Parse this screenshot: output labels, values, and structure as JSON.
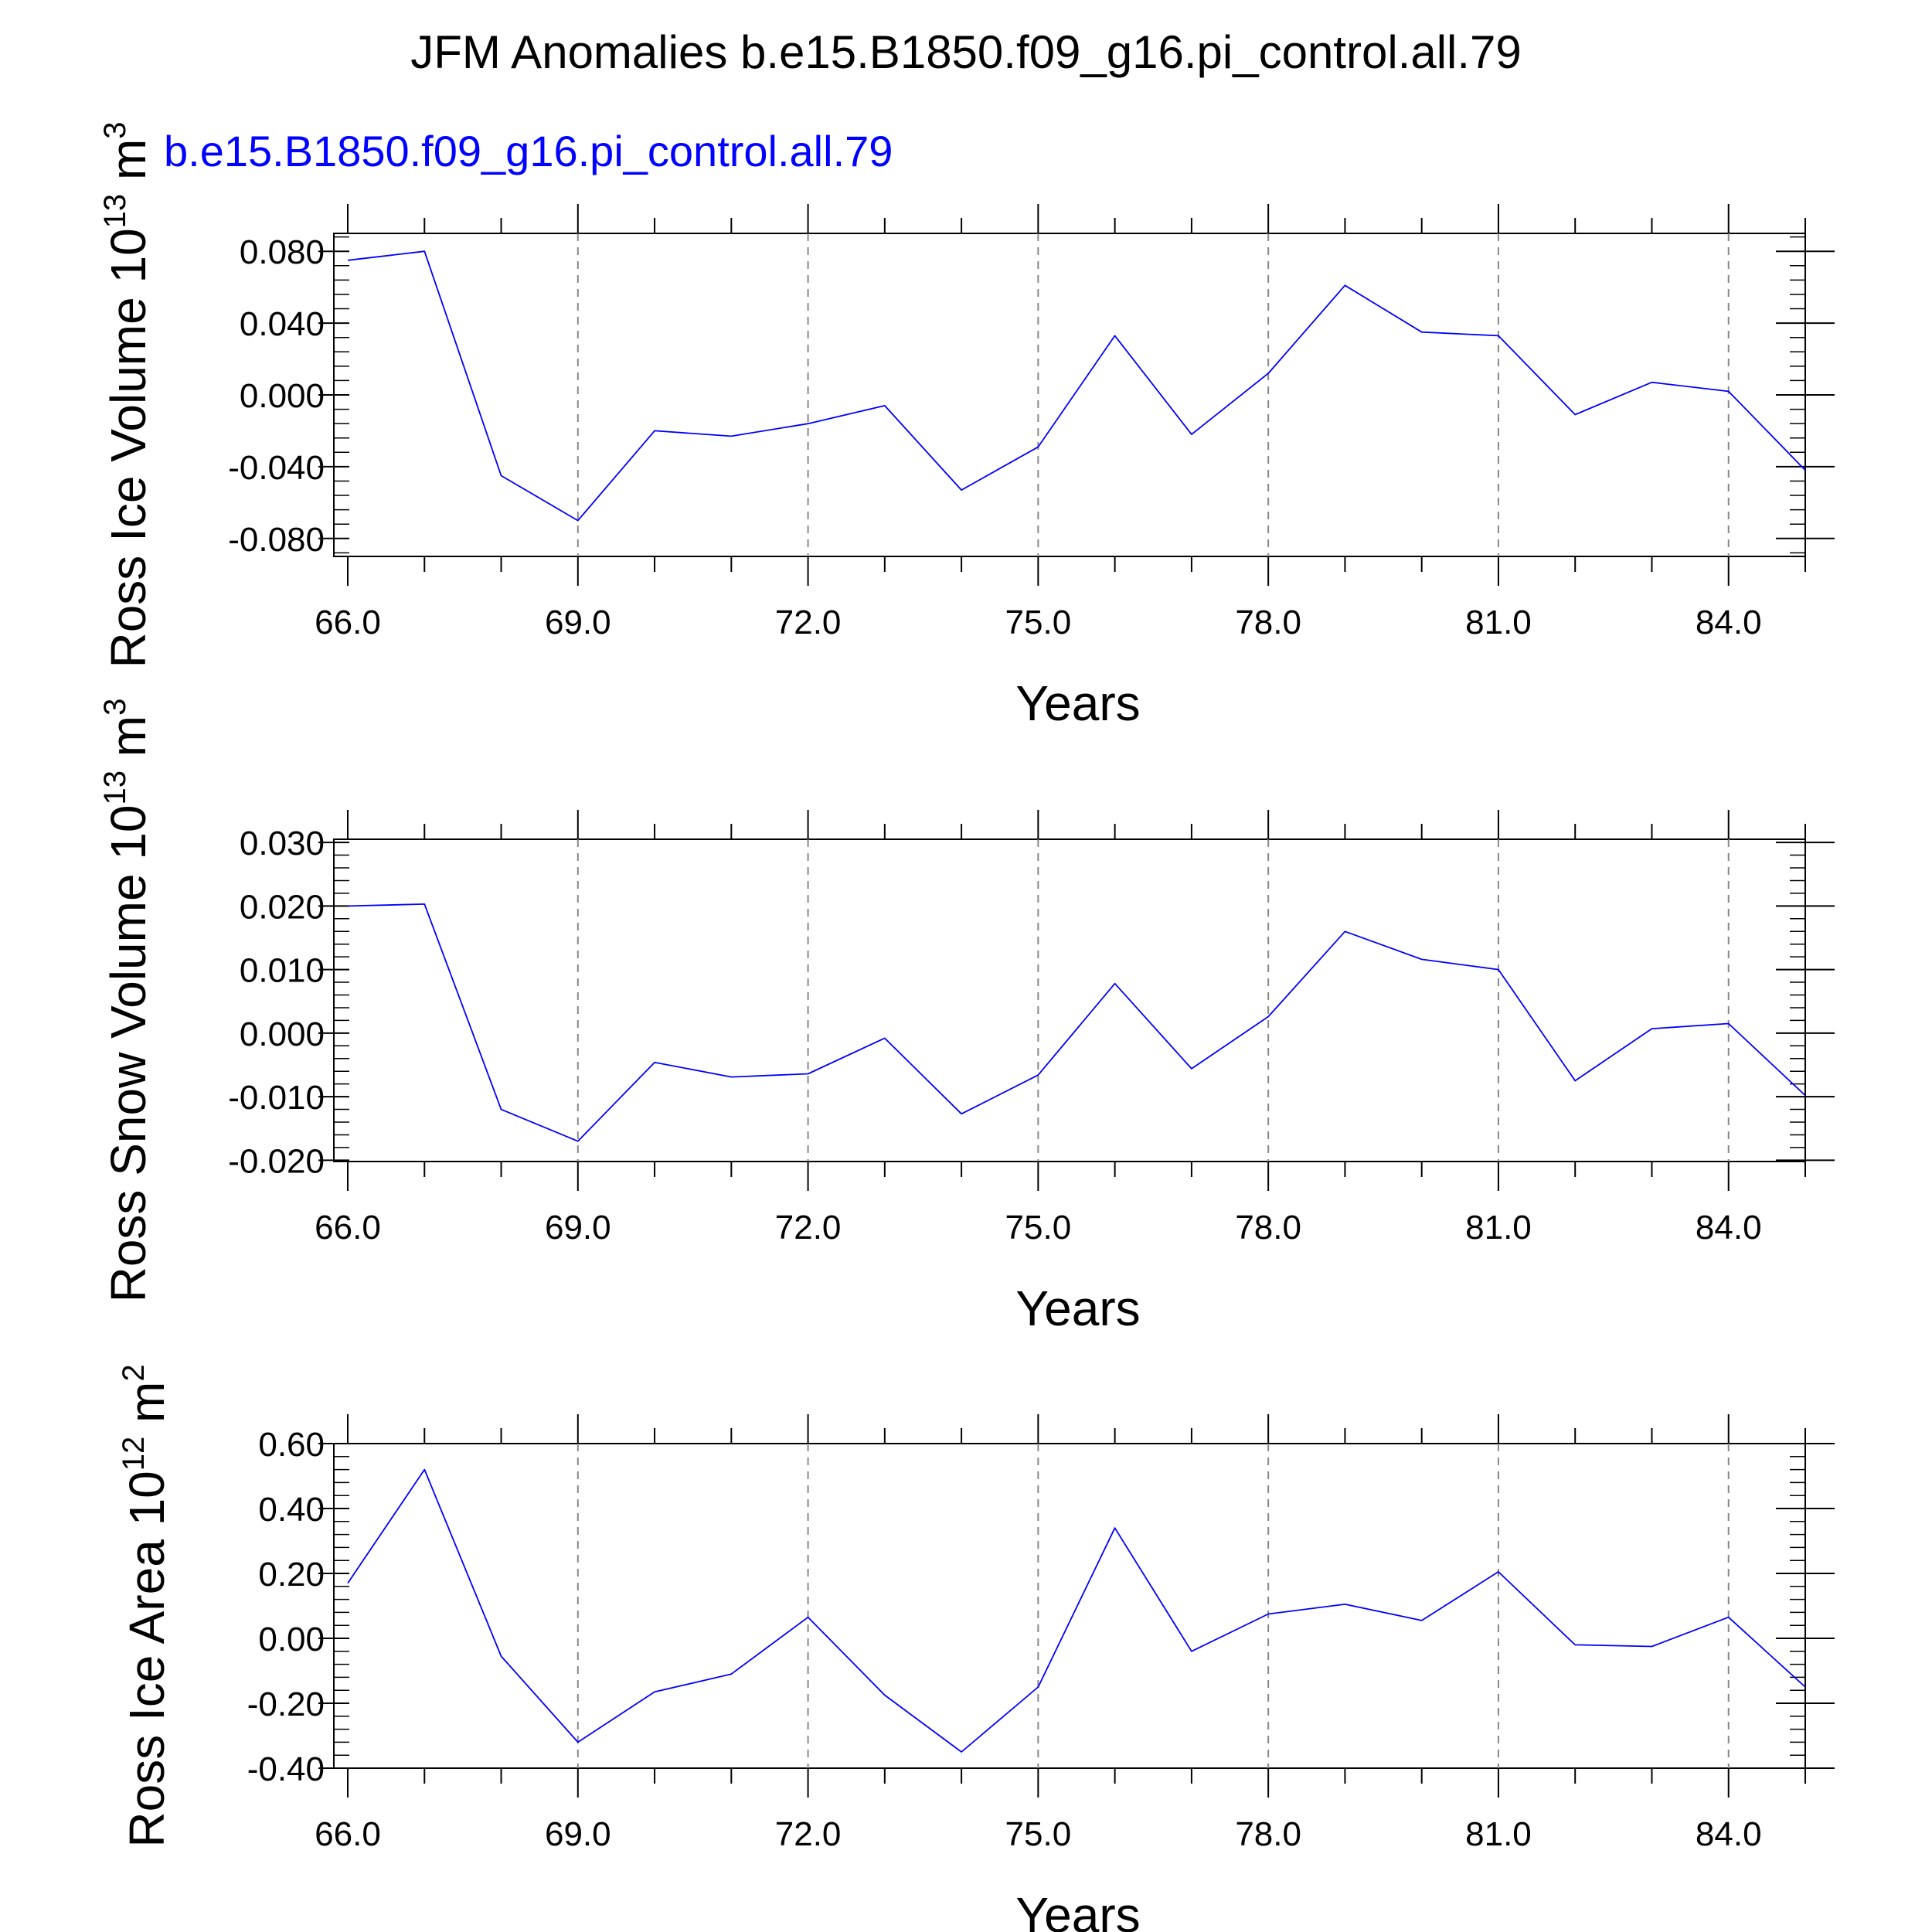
{
  "figure": {
    "title": "JFM Anomalies b.e15.B1850.f09_g16.pi_control.all.79",
    "legend_label": "b.e15.B1850.f09_g16.pi_control.all.79",
    "line_color": "#0000ff",
    "grid_color": "#888888",
    "axis_color": "#000000"
  },
  "chart_data": [
    {
      "type": "line",
      "title": "",
      "xlabel": "Years",
      "ylabel": {
        "text": "Ross Ice Volume 10",
        "exp": "13",
        "unit": " m",
        "unit_exp": "3"
      },
      "xlim": [
        66,
        85
      ],
      "ylim": [
        -0.09,
        0.09
      ],
      "x_ticks": [
        66,
        69,
        72,
        75,
        78,
        81,
        84
      ],
      "x_tick_labels": [
        "66.0",
        "69.0",
        "72.0",
        "75.0",
        "78.0",
        "81.0",
        "84.0"
      ],
      "y_ticks": [
        -0.08,
        -0.04,
        0.0,
        0.04,
        0.08
      ],
      "y_tick_labels": [
        "-0.080",
        "-0.040",
        "0.000",
        "0.040",
        "0.080"
      ],
      "y_minor_step": 0.008,
      "x": [
        66,
        67,
        68,
        69,
        70,
        71,
        72,
        73,
        74,
        75,
        76,
        77,
        78,
        79,
        80,
        81,
        82,
        83,
        84,
        85
      ],
      "series": [
        {
          "name": "b.e15.B1850.f09_g16.pi_control.all.79",
          "values": [
            0.075,
            0.08,
            -0.045,
            -0.07,
            -0.02,
            -0.023,
            -0.016,
            -0.006,
            -0.053,
            -0.029,
            0.033,
            -0.022,
            0.012,
            0.061,
            0.035,
            0.033,
            -0.011,
            0.007,
            0.002,
            -0.042
          ]
        }
      ]
    },
    {
      "type": "line",
      "title": "",
      "xlabel": "Years",
      "ylabel": {
        "text": "Ross Snow Volume 10",
        "exp": "13",
        "unit": " m",
        "unit_exp": "3"
      },
      "xlim": [
        66,
        85
      ],
      "ylim": [
        -0.02,
        0.0305
      ],
      "x_ticks": [
        66,
        69,
        72,
        75,
        78,
        81,
        84
      ],
      "x_tick_labels": [
        "66.0",
        "69.0",
        "72.0",
        "75.0",
        "78.0",
        "81.0",
        "84.0"
      ],
      "y_ticks": [
        -0.02,
        -0.01,
        0.0,
        0.01,
        0.02,
        0.03
      ],
      "y_tick_labels": [
        "-0.020",
        "-0.010",
        "0.000",
        "0.010",
        "0.020",
        "0.030"
      ],
      "y_minor_step": 0.002,
      "x": [
        66,
        67,
        68,
        69,
        70,
        71,
        72,
        73,
        74,
        75,
        76,
        77,
        78,
        79,
        80,
        81,
        82,
        83,
        84,
        85
      ],
      "series": [
        {
          "name": "b.e15.B1850.f09_g16.pi_control.all.79",
          "values": [
            0.02,
            0.0203,
            -0.012,
            -0.017,
            -0.0046,
            -0.0069,
            -0.0064,
            -0.0008,
            -0.0127,
            -0.0066,
            0.0078,
            -0.0056,
            0.0026,
            0.016,
            0.0116,
            0.01,
            -0.0075,
            0.0007,
            0.0015,
            -0.0098
          ]
        }
      ]
    },
    {
      "type": "line",
      "title": "",
      "xlabel": "Years",
      "ylabel": {
        "text": "Ross Ice Area 10",
        "exp": "12",
        "unit": " m",
        "unit_exp": "2"
      },
      "xlim": [
        66,
        85
      ],
      "ylim": [
        -0.4,
        0.6
      ],
      "x_ticks": [
        66,
        69,
        72,
        75,
        78,
        81,
        84
      ],
      "x_tick_labels": [
        "66.0",
        "69.0",
        "72.0",
        "75.0",
        "78.0",
        "81.0",
        "84.0"
      ],
      "y_ticks": [
        -0.4,
        -0.2,
        0.0,
        0.2,
        0.4,
        0.6
      ],
      "y_tick_labels": [
        "-0.40",
        "-0.20",
        "0.00",
        "0.20",
        "0.40",
        "0.60"
      ],
      "y_minor_step": 0.04,
      "x": [
        66,
        67,
        68,
        69,
        70,
        71,
        72,
        73,
        74,
        75,
        76,
        77,
        78,
        79,
        80,
        81,
        82,
        83,
        84,
        85
      ],
      "series": [
        {
          "name": "b.e15.B1850.f09_g16.pi_control.all.79",
          "values": [
            0.17,
            0.52,
            -0.055,
            -0.32,
            -0.165,
            -0.11,
            0.065,
            -0.175,
            -0.35,
            -0.15,
            0.34,
            -0.04,
            0.075,
            0.105,
            0.055,
            0.205,
            -0.02,
            -0.025,
            0.065,
            -0.15
          ]
        }
      ]
    }
  ]
}
